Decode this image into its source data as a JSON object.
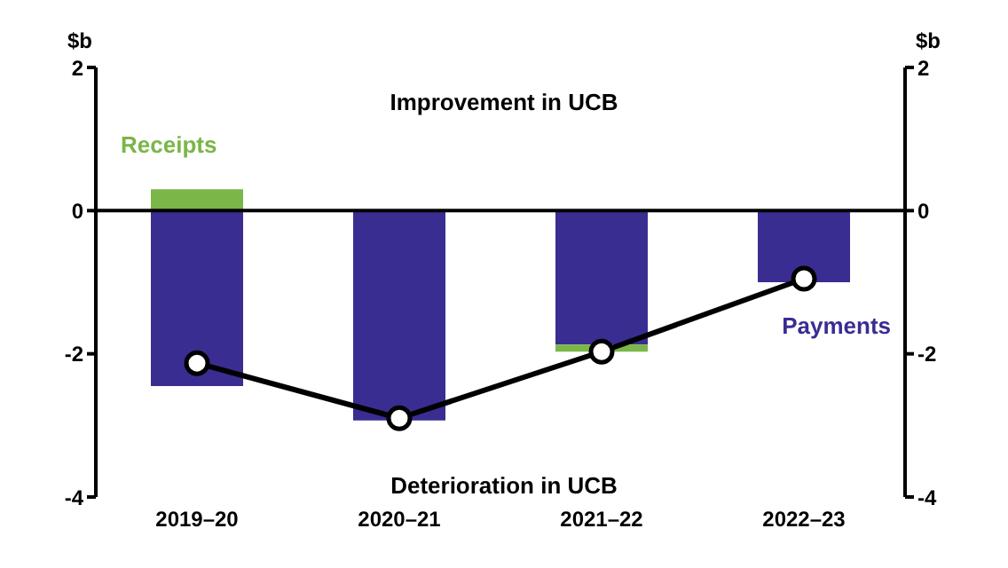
{
  "chart_data": {
    "type": "bar",
    "stacked": true,
    "categories": [
      "2019–20",
      "2020–21",
      "2021–22",
      "2022–23"
    ],
    "series": [
      {
        "name": "Payments",
        "color": "#3a2d91",
        "values": [
          -2.45,
          -2.93,
          -1.87,
          -1.0
        ]
      },
      {
        "name": "Receipts",
        "color": "#7ab648",
        "values": [
          0.3,
          0,
          -0.1,
          0
        ]
      },
      {
        "type": "line",
        "color": "#000000",
        "values": [
          -2.13,
          -2.9,
          -1.97,
          -0.95
        ]
      }
    ],
    "ylabel": "$b",
    "y2label": "$b",
    "ylim": [
      -4,
      2
    ],
    "yticks": [
      -4,
      -2,
      0,
      2
    ],
    "y2lim": [
      -4,
      2
    ],
    "y2ticks": [
      -4,
      -2,
      0,
      2
    ],
    "annotations": [
      "Improvement in UCB",
      "Deterioration in UCB"
    ],
    "marker": "circle"
  }
}
